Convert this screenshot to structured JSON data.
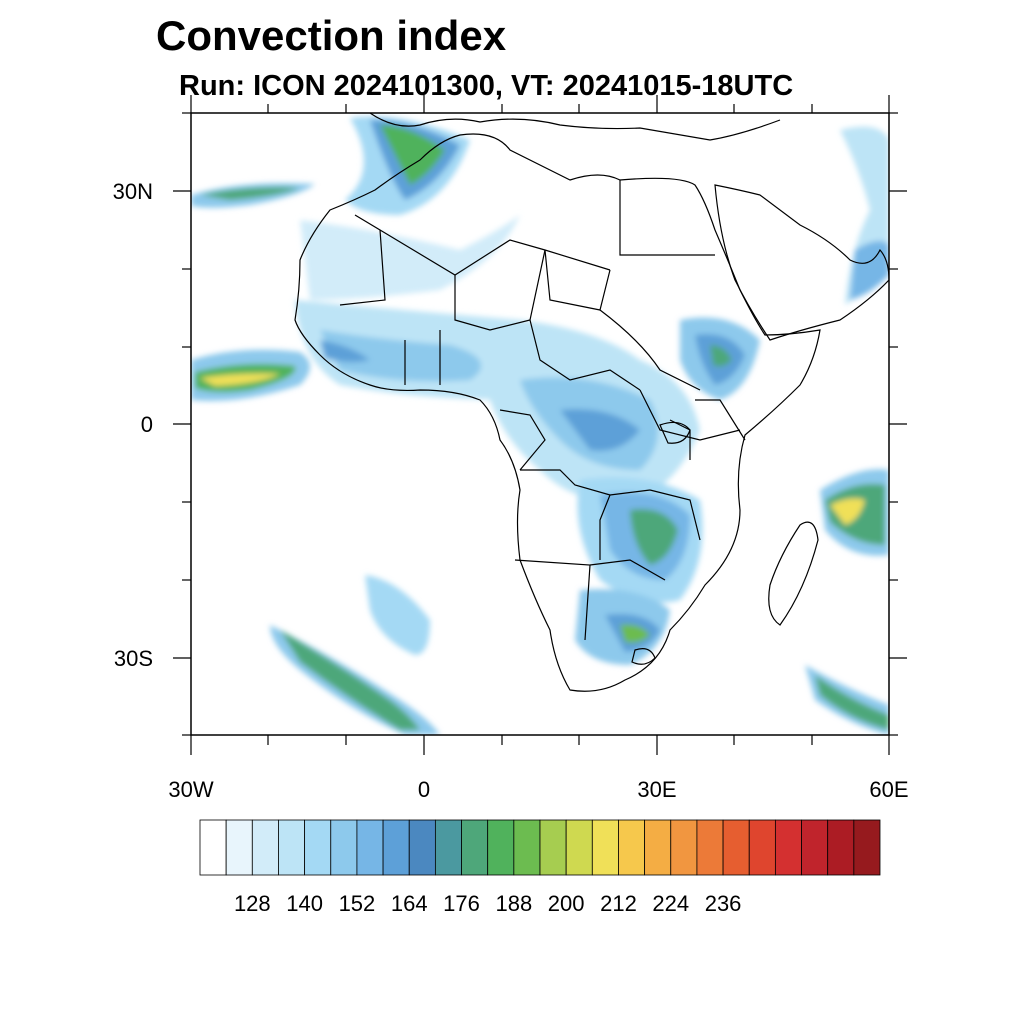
{
  "title": "Convection index",
  "subtitle": "Run: ICON 2024101300,  VT: 20241015-18UTC",
  "map": {
    "lat_labels": [
      "30N",
      "0",
      "30S"
    ],
    "lon_labels": [
      "30W",
      "0",
      "30E",
      "60E"
    ],
    "extent": {
      "lon": [
        -30,
        60
      ],
      "lat": [
        -40,
        40
      ]
    }
  },
  "colorbar": {
    "colors": [
      "#ffffff",
      "#e8f5fc",
      "#d2ecf9",
      "#bde4f6",
      "#a4d9f4",
      "#8dc9ec",
      "#76b6e6",
      "#5da0d8",
      "#4b88c0",
      "#4b99a0",
      "#4ea77a",
      "#50b25c",
      "#6cbc50",
      "#a6cd50",
      "#cfd950",
      "#f0e058",
      "#f6c84c",
      "#f4ad44",
      "#f19640",
      "#ec7a38",
      "#e65e30",
      "#df452e",
      "#d43030",
      "#c0242c",
      "#ac1c24",
      "#961a1e"
    ],
    "tick_labels": [
      "128",
      "140",
      "152",
      "164",
      "176",
      "188",
      "200",
      "212",
      "224",
      "236"
    ]
  }
}
